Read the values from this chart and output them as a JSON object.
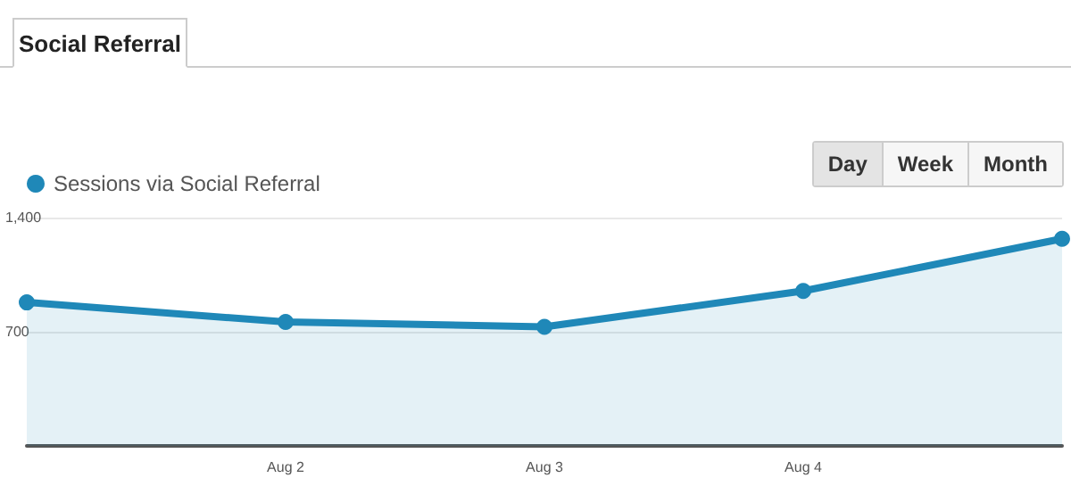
{
  "chart_data": {
    "type": "area",
    "title": "Social Referral",
    "annotations": [
      "Day",
      "Week",
      "Month"
    ],
    "categories": [
      null,
      "Aug 2",
      "Aug 3",
      "Aug 4",
      null
    ],
    "series": [
      {
        "name": "Sessions via Social Referral",
        "color": "#1f88b8",
        "values": [
          880,
          760,
          730,
          950,
          1270
        ]
      }
    ],
    "ylim": [
      0,
      1400
    ],
    "yticks": [
      {
        "value": 700,
        "label": "700"
      },
      {
        "value": 1400,
        "label": "1,400"
      }
    ],
    "grid": "y",
    "legend": "top left",
    "marker": "circle"
  }
}
